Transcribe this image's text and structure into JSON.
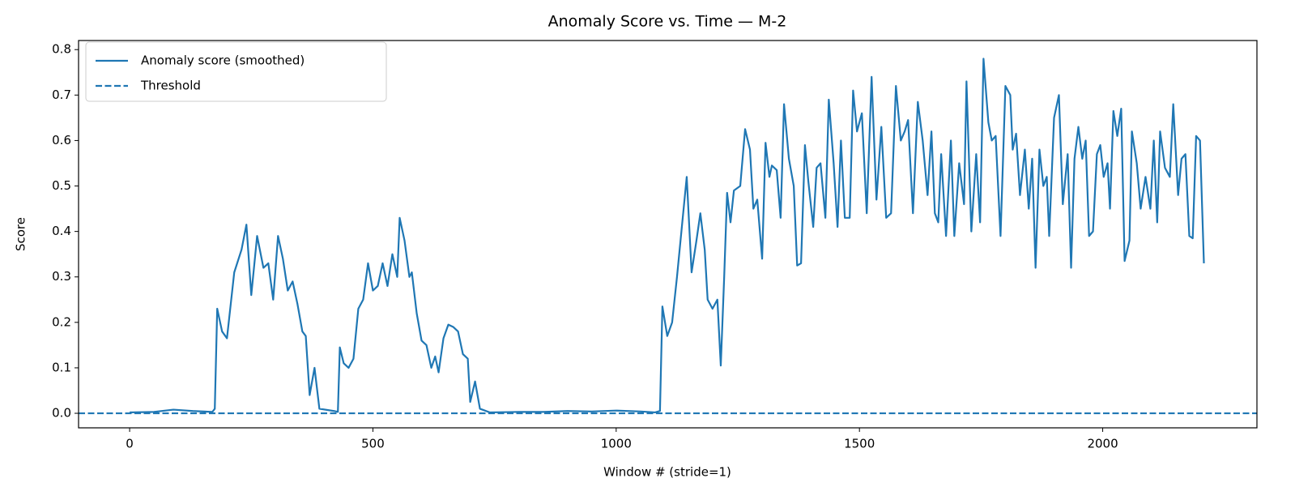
{
  "chart_data": {
    "type": "line",
    "title": "Anomaly Score vs. Time — M-2",
    "xlabel": "Window # (stride=1)",
    "ylabel": "Score",
    "x": [
      0,
      50,
      90,
      130,
      170,
      175,
      180,
      190,
      200,
      215,
      230,
      240,
      250,
      262,
      275,
      285,
      295,
      305,
      315,
      325,
      335,
      345,
      355,
      362,
      370,
      380,
      390,
      420,
      428,
      432,
      440,
      450,
      460,
      470,
      480,
      490,
      500,
      510,
      520,
      530,
      540,
      550,
      555,
      565,
      575,
      580,
      590,
      600,
      610,
      620,
      628,
      635,
      645,
      655,
      665,
      675,
      685,
      695,
      700,
      710,
      720,
      740,
      800,
      850,
      900,
      950,
      1000,
      1050,
      1080,
      1090,
      1095,
      1105,
      1115,
      1125,
      1135,
      1145,
      1155,
      1165,
      1173,
      1182,
      1188,
      1198,
      1208,
      1215,
      1222,
      1228,
      1235,
      1242,
      1255,
      1265,
      1275,
      1282,
      1290,
      1300,
      1307,
      1315,
      1320,
      1330,
      1338,
      1345,
      1355,
      1365,
      1372,
      1380,
      1388,
      1395,
      1405,
      1412,
      1420,
      1430,
      1437,
      1447,
      1455,
      1462,
      1470,
      1480,
      1487,
      1495,
      1505,
      1515,
      1525,
      1535,
      1545,
      1555,
      1565,
      1575,
      1585,
      1593,
      1600,
      1610,
      1620,
      1630,
      1640,
      1648,
      1655,
      1662,
      1668,
      1678,
      1688,
      1695,
      1705,
      1715,
      1720,
      1730,
      1740,
      1748,
      1755,
      1765,
      1772,
      1780,
      1790,
      1800,
      1810,
      1815,
      1822,
      1830,
      1840,
      1848,
      1855,
      1862,
      1870,
      1878,
      1885,
      1890,
      1900,
      1910,
      1918,
      1928,
      1935,
      1942,
      1950,
      1958,
      1965,
      1972,
      1980,
      1988,
      1995,
      2002,
      2010,
      2015,
      2022,
      2030,
      2038,
      2045,
      2055,
      2060,
      2070,
      2078,
      2088,
      2098,
      2105,
      2112,
      2118,
      2128,
      2138,
      2145,
      2155,
      2162,
      2170,
      2178,
      2185,
      2192,
      2200,
      2208
    ],
    "series": [
      {
        "name": "Anomaly score (smoothed)",
        "color": "#1f77b4",
        "values": [
          0.002,
          0.003,
          0.008,
          0.005,
          0.003,
          0.01,
          0.23,
          0.18,
          0.165,
          0.31,
          0.36,
          0.415,
          0.26,
          0.39,
          0.32,
          0.33,
          0.25,
          0.39,
          0.34,
          0.27,
          0.29,
          0.24,
          0.18,
          0.17,
          0.04,
          0.1,
          0.01,
          0.005,
          0.003,
          0.145,
          0.11,
          0.1,
          0.12,
          0.23,
          0.25,
          0.33,
          0.27,
          0.28,
          0.33,
          0.28,
          0.35,
          0.3,
          0.43,
          0.38,
          0.3,
          0.31,
          0.22,
          0.16,
          0.15,
          0.1,
          0.125,
          0.09,
          0.165,
          0.195,
          0.19,
          0.18,
          0.13,
          0.12,
          0.025,
          0.07,
          0.01,
          0.002,
          0.003,
          0.003,
          0.005,
          0.004,
          0.006,
          0.004,
          0.002,
          0.005,
          0.235,
          0.17,
          0.2,
          0.3,
          0.41,
          0.52,
          0.31,
          0.38,
          0.44,
          0.36,
          0.25,
          0.23,
          0.25,
          0.105,
          0.3,
          0.485,
          0.42,
          0.49,
          0.5,
          0.625,
          0.58,
          0.45,
          0.47,
          0.34,
          0.595,
          0.52,
          0.545,
          0.535,
          0.43,
          0.68,
          0.56,
          0.5,
          0.325,
          0.33,
          0.59,
          0.51,
          0.41,
          0.54,
          0.55,
          0.43,
          0.69,
          0.55,
          0.41,
          0.6,
          0.43,
          0.43,
          0.71,
          0.62,
          0.66,
          0.44,
          0.74,
          0.47,
          0.63,
          0.43,
          0.44,
          0.72,
          0.6,
          0.62,
          0.645,
          0.44,
          0.685,
          0.6,
          0.48,
          0.62,
          0.44,
          0.42,
          0.57,
          0.39,
          0.6,
          0.39,
          0.55,
          0.46,
          0.73,
          0.4,
          0.57,
          0.42,
          0.78,
          0.64,
          0.6,
          0.61,
          0.39,
          0.72,
          0.7,
          0.58,
          0.615,
          0.48,
          0.58,
          0.45,
          0.56,
          0.32,
          0.58,
          0.5,
          0.52,
          0.39,
          0.65,
          0.7,
          0.46,
          0.57,
          0.32,
          0.56,
          0.63,
          0.56,
          0.6,
          0.39,
          0.4,
          0.57,
          0.59,
          0.52,
          0.55,
          0.45,
          0.665,
          0.61,
          0.67,
          0.335,
          0.38,
          0.62,
          0.55,
          0.45,
          0.52,
          0.45,
          0.6,
          0.42,
          0.62,
          0.54,
          0.52,
          0.68,
          0.48,
          0.56,
          0.57,
          0.39,
          0.385,
          0.61,
          0.6,
          0.33
        ]
      }
    ],
    "threshold": {
      "name": "Threshold",
      "value": 0,
      "color": "#1f77b4"
    },
    "xlim": [
      -105,
      2317
    ],
    "xticks": [
      0,
      500,
      1000,
      1500,
      2000
    ],
    "ylim": [
      -0.032,
      0.82
    ],
    "yticks": [
      {
        "value": 0,
        "label": "0.0"
      },
      0.1,
      0.2,
      0.3,
      0.4,
      0.5,
      0.6,
      0.7,
      0.8
    ],
    "legend": "upper left"
  }
}
